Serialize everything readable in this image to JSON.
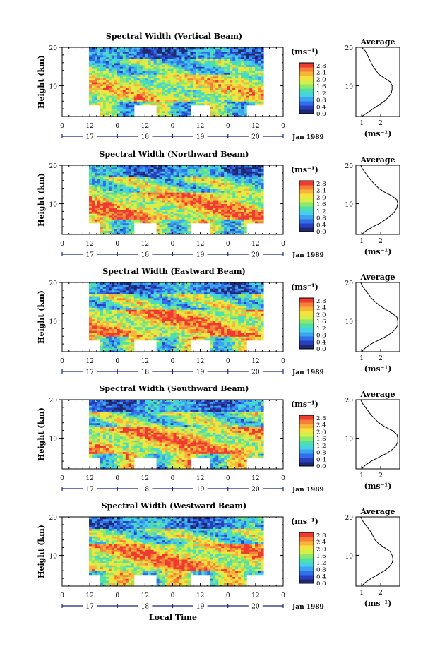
{
  "figure": {
    "xlabel": "Local Time",
    "date_label": "Jan 1989"
  },
  "colorbar": {
    "unit": "(ms⁻¹)",
    "ticks": [
      "2.8",
      "2.4",
      "2.0",
      "1.6",
      "1.2",
      "0.8",
      "0.4",
      "0.0"
    ],
    "colors": [
      "#1e2a6e",
      "#2a3fbf",
      "#2f6fe8",
      "#3fa4f0",
      "#45d2e6",
      "#4ee0a8",
      "#8fe86a",
      "#d6ee4a",
      "#f6e23c",
      "#f8b43a",
      "#f57f38",
      "#ee3a30"
    ]
  },
  "chart_data": [
    {
      "type": "heatmap",
      "title": "Spectral Width (Vertical Beam)",
      "ylabel": "Height (km)",
      "yticks": [
        "20",
        "10"
      ],
      "ylim": [
        2,
        20
      ],
      "x_top_ticks": [
        "0",
        "12",
        "0",
        "12",
        "0",
        "12",
        "0",
        "12",
        "0"
      ],
      "x_day_labels": [
        "17",
        "18",
        "19",
        "20"
      ],
      "value_range": [
        0.0,
        2.8
      ],
      "profile": {
        "title": "Average",
        "xticks": [
          "1",
          "2"
        ],
        "xlabel": "(ms⁻¹)",
        "yticks": [
          "20",
          "10"
        ],
        "height": [
          2,
          3,
          4,
          5,
          6,
          7,
          8,
          9,
          10,
          11,
          12,
          13,
          14,
          15,
          16,
          17,
          18,
          19,
          20
        ],
        "width": [
          1.0,
          1.3,
          1.6,
          1.9,
          2.2,
          2.4,
          2.55,
          2.6,
          2.6,
          2.5,
          2.2,
          1.9,
          1.75,
          1.6,
          1.5,
          1.4,
          1.3,
          1.2,
          1.0
        ]
      }
    },
    {
      "type": "heatmap",
      "title": "Spectral Width (Northward Beam)",
      "ylabel": "Height (km)",
      "yticks": [
        "20",
        "10"
      ],
      "ylim": [
        2,
        20
      ],
      "x_top_ticks": [
        "0",
        "12",
        "0",
        "12",
        "0",
        "12",
        "0",
        "12",
        "0"
      ],
      "x_day_labels": [
        "17",
        "18",
        "19",
        "20"
      ],
      "value_range": [
        0.0,
        2.8
      ],
      "profile": {
        "title": "Average",
        "xticks": [
          "1",
          "2"
        ],
        "xlabel": "(ms⁻¹)",
        "yticks": [
          "20",
          "10"
        ],
        "height": [
          2,
          3,
          4,
          5,
          6,
          7,
          8,
          9,
          10,
          11,
          12,
          13,
          14,
          15,
          16,
          17,
          18,
          19,
          20
        ],
        "width": [
          1.0,
          1.25,
          1.6,
          2.0,
          2.3,
          2.55,
          2.75,
          2.85,
          2.9,
          2.85,
          2.6,
          2.2,
          1.9,
          1.7,
          1.5,
          1.35,
          1.2,
          1.05,
          0.95
        ]
      }
    },
    {
      "type": "heatmap",
      "title": "Spectral Width (Eastward Beam)",
      "ylabel": "Height (km)",
      "yticks": [
        "20",
        "10"
      ],
      "ylim": [
        2,
        20
      ],
      "x_top_ticks": [
        "0",
        "12",
        "0",
        "12",
        "0",
        "12",
        "0",
        "12",
        "0"
      ],
      "x_day_labels": [
        "17",
        "18",
        "19",
        "20"
      ],
      "value_range": [
        0.0,
        2.8
      ],
      "profile": {
        "title": "Average",
        "xticks": [
          "1",
          "2"
        ],
        "xlabel": "(ms⁻¹)",
        "yticks": [
          "20",
          "10"
        ],
        "height": [
          2,
          3,
          4,
          5,
          6,
          7,
          8,
          9,
          10,
          11,
          12,
          13,
          14,
          15,
          16,
          17,
          18,
          19,
          20
        ],
        "width": [
          1.0,
          1.2,
          1.5,
          1.9,
          2.3,
          2.6,
          2.8,
          2.9,
          2.9,
          2.85,
          2.6,
          2.25,
          1.95,
          1.7,
          1.5,
          1.35,
          1.2,
          1.05,
          0.95
        ]
      }
    },
    {
      "type": "heatmap",
      "title": "Spectral Width (Southward Beam)",
      "ylabel": "Height (km)",
      "yticks": [
        "20",
        "10"
      ],
      "ylim": [
        2,
        20
      ],
      "x_top_ticks": [
        "0",
        "12",
        "0",
        "12",
        "0",
        "12",
        "0",
        "12",
        "0"
      ],
      "x_day_labels": [
        "17",
        "18",
        "19",
        "20"
      ],
      "value_range": [
        0.0,
        2.8
      ],
      "profile": {
        "title": "Average",
        "xticks": [
          "1",
          "2"
        ],
        "xlabel": "(ms⁻¹)",
        "yticks": [
          "20",
          "10"
        ],
        "height": [
          2,
          3,
          4,
          5,
          6,
          7,
          8,
          9,
          10,
          11,
          12,
          13,
          14,
          15,
          16,
          17,
          18,
          19,
          20
        ],
        "width": [
          1.0,
          1.2,
          1.5,
          1.9,
          2.3,
          2.6,
          2.8,
          2.9,
          2.9,
          2.85,
          2.6,
          2.2,
          1.9,
          1.7,
          1.5,
          1.35,
          1.2,
          1.05,
          0.95
        ]
      }
    },
    {
      "type": "heatmap",
      "title": "Spectral Width (Westward Beam)",
      "ylabel": "Height (km)",
      "yticks": [
        "20",
        "10"
      ],
      "ylim": [
        2,
        20
      ],
      "x_top_ticks": [
        "0",
        "12",
        "0",
        "12",
        "0",
        "12",
        "0",
        "12",
        "0"
      ],
      "x_day_labels": [
        "17",
        "18",
        "19",
        "20"
      ],
      "value_range": [
        0.0,
        2.8
      ],
      "profile": {
        "title": "Average",
        "xticks": [
          "1",
          "2"
        ],
        "xlabel": "(ms⁻¹)",
        "yticks": [
          "20",
          "10"
        ],
        "height": [
          2,
          3,
          4,
          5,
          6,
          7,
          8,
          9,
          10,
          11,
          12,
          13,
          14,
          15,
          16,
          17,
          18,
          19,
          20
        ],
        "width": [
          1.0,
          1.2,
          1.5,
          1.85,
          2.2,
          2.45,
          2.6,
          2.65,
          2.6,
          2.5,
          2.2,
          1.9,
          1.7,
          1.6,
          1.5,
          1.35,
          1.2,
          1.05,
          0.95
        ]
      }
    }
  ]
}
